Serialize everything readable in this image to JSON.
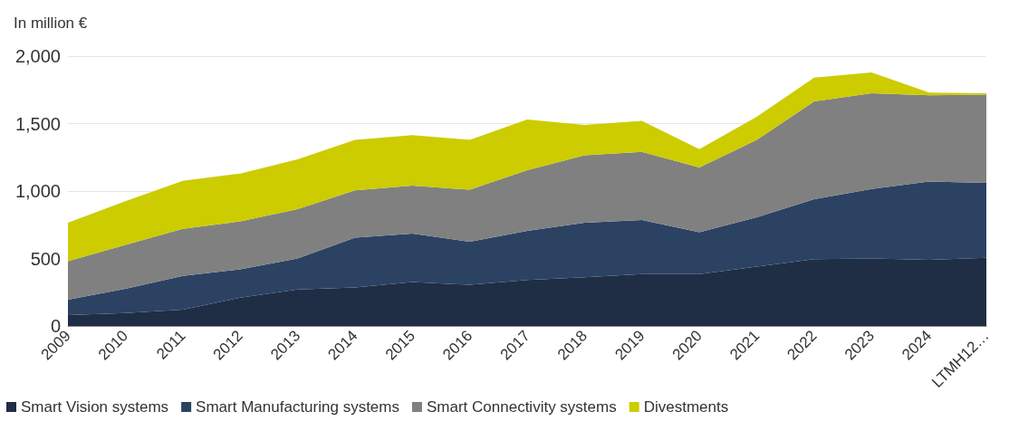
{
  "chart_data": {
    "type": "area",
    "stacked": true,
    "ylabel": "In million €",
    "categories": [
      "2009",
      "2010",
      "2011",
      "2012",
      "2013",
      "2014",
      "2015",
      "2016",
      "2017",
      "2018",
      "2019",
      "2020",
      "2021",
      "2022",
      "2023",
      "2024",
      "LTMH12…"
    ],
    "series": [
      {
        "name": "Smart Vision systems",
        "color": "#1f2d45",
        "values": [
          80,
          95,
          120,
          210,
          270,
          285,
          325,
          305,
          340,
          360,
          385,
          385,
          440,
          495,
          500,
          490,
          505
        ]
      },
      {
        "name": "Smart Manufacturing systems",
        "color": "#2b4263",
        "values": [
          115,
          180,
          250,
          210,
          230,
          370,
          360,
          320,
          365,
          405,
          400,
          310,
          365,
          445,
          515,
          580,
          555
        ]
      },
      {
        "name": "Smart Connectivity systems",
        "color": "#808080",
        "values": [
          285,
          325,
          350,
          355,
          365,
          350,
          355,
          385,
          450,
          500,
          505,
          480,
          575,
          725,
          710,
          640,
          655
        ]
      },
      {
        "name": "Divestments",
        "color": "#cccc00",
        "values": [
          285,
          325,
          355,
          355,
          370,
          375,
          375,
          370,
          375,
          225,
          230,
          135,
          170,
          175,
          155,
          20,
          10
        ]
      }
    ],
    "ylim": [
      0,
      2000
    ],
    "yticks": [
      0,
      500,
      {
        "value": 1000,
        "label": "1,000"
      },
      {
        "value": 1500,
        "label": "1,500"
      },
      {
        "value": 2000,
        "label": "2,000"
      }
    ],
    "grid": "y",
    "legend": "bottom"
  }
}
